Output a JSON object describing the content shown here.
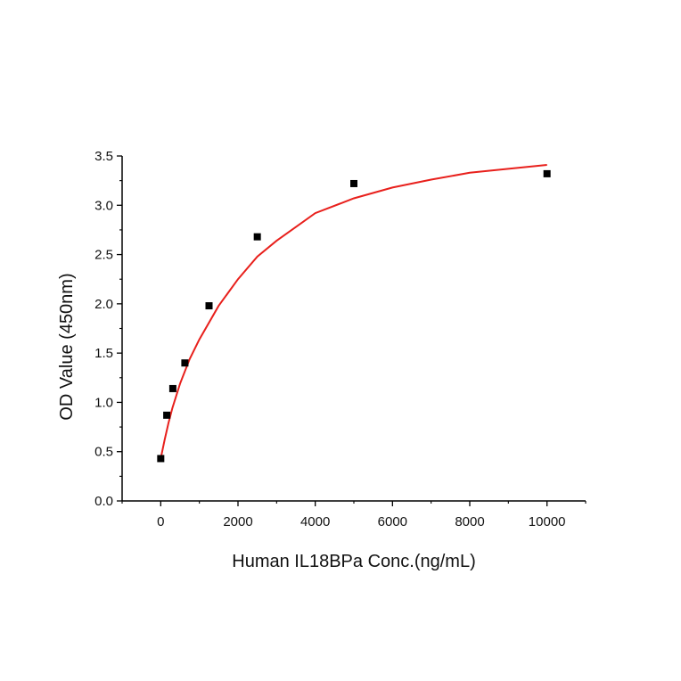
{
  "chart_data": {
    "type": "scatter",
    "title": "",
    "xlabel": "Human IL18BPa Conc.(ng/mL)",
    "ylabel": "OD Value (450nm)",
    "xlim": [
      -1000,
      11000
    ],
    "ylim": [
      0,
      3.5
    ],
    "x_ticks": [
      0,
      2000,
      4000,
      6000,
      8000,
      10000
    ],
    "x_tick_labels": [
      "0",
      "2000",
      "4000",
      "6000",
      "8000",
      "10000"
    ],
    "y_ticks": [
      0,
      0.5,
      1.0,
      1.5,
      2.0,
      2.5,
      3.0,
      3.5
    ],
    "y_tick_labels": [
      "0.0",
      "0.5",
      "1.0",
      "1.5",
      "2.0",
      "2.5",
      "3.0",
      "3.5"
    ],
    "grid": false,
    "legend": "none",
    "series": [
      {
        "kind": "points",
        "marker": "square",
        "color": "#000000",
        "x": [
          0,
          156,
          313,
          625,
          1250,
          2500,
          5000,
          10000
        ],
        "y": [
          0.43,
          0.87,
          1.14,
          1.4,
          1.98,
          2.68,
          3.22,
          3.32
        ]
      },
      {
        "kind": "fit-curve",
        "color": "#e8201c",
        "x": [
          0,
          100,
          200,
          300,
          500,
          750,
          1000,
          1500,
          2000,
          2500,
          3000,
          4000,
          5000,
          6000,
          7000,
          8000,
          9000,
          10000
        ],
        "y": [
          0.43,
          0.62,
          0.79,
          0.94,
          1.19,
          1.44,
          1.64,
          1.98,
          2.25,
          2.48,
          2.64,
          2.92,
          3.07,
          3.18,
          3.26,
          3.33,
          3.37,
          3.41
        ]
      }
    ]
  }
}
